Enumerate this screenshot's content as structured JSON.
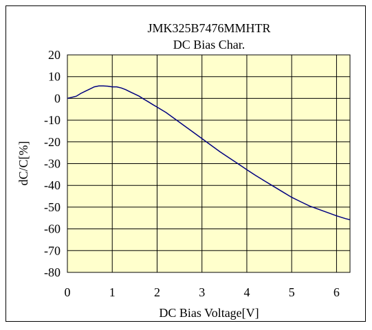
{
  "chart_data": {
    "type": "line",
    "title": "JMK325B7476MMHTR",
    "subtitle": "DC Bias Char.",
    "xlabel": "DC Bias Voltage[V]",
    "ylabel": "dC/C[%]",
    "xlim": [
      0,
      6.3
    ],
    "ylim": [
      -80,
      20
    ],
    "xticks": [
      0,
      1,
      2,
      3,
      4,
      5,
      6
    ],
    "yticks": [
      20,
      10,
      0,
      -10,
      -20,
      -30,
      -40,
      -50,
      -60,
      -70,
      -80
    ],
    "grid": true,
    "plot_background": "#ffffcc",
    "line_color": "#000080",
    "series": [
      {
        "x": [
          0,
          0.1,
          0.2,
          0.3,
          0.4,
          0.5,
          0.6,
          0.7,
          0.8,
          0.9,
          1.0,
          1.1,
          1.2,
          1.3,
          1.4,
          1.5,
          1.6,
          1.7,
          1.8,
          1.9,
          2.0,
          2.2,
          2.4,
          2.6,
          2.8,
          3.0,
          3.2,
          3.4,
          3.6,
          3.8,
          4.0,
          4.2,
          4.4,
          4.6,
          4.8,
          5.0,
          5.2,
          5.4,
          5.6,
          5.8,
          6.0,
          6.2,
          6.3
        ],
        "y": [
          0,
          0.5,
          1,
          2.3,
          3.3,
          4.3,
          5.3,
          5.7,
          5.7,
          5.6,
          5.3,
          5.3,
          4.8,
          4.0,
          3.0,
          2.0,
          1.0,
          -0.3,
          -1.5,
          -2.8,
          -4.0,
          -6.5,
          -9.5,
          -12.5,
          -15.5,
          -18.5,
          -21.5,
          -24.5,
          -27.3,
          -30.0,
          -32.8,
          -35.5,
          -38.0,
          -40.5,
          -43.0,
          -45.5,
          -47.5,
          -49.5,
          -51.0,
          -52.5,
          -54.0,
          -55.3,
          -55.8
        ]
      }
    ]
  }
}
